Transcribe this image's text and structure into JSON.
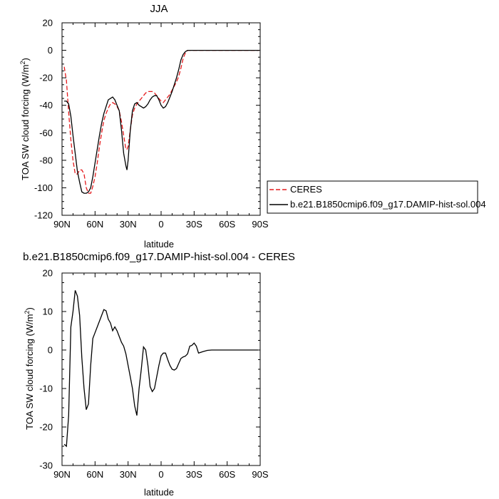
{
  "chart_data": [
    {
      "type": "line",
      "title": "JJA",
      "xlabel": "latitude",
      "ylabel_main": "TOA SW cloud forcing (W/m",
      "ylabel_sup": "2",
      "ylabel_close": ")",
      "xlim": [
        90,
        -90
      ],
      "ylim": [
        -120,
        20
      ],
      "xticks": [
        90,
        60,
        30,
        0,
        -30,
        -60,
        -90
      ],
      "xtick_labels": [
        "90N",
        "60N",
        "30N",
        "0",
        "30S",
        "60S",
        "90S"
      ],
      "yticks": [
        -120,
        -100,
        -80,
        -60,
        -40,
        -20,
        0,
        20
      ],
      "ytick_labels": [
        "-120",
        "-100",
        "-80",
        "-60",
        "-40",
        "-20",
        "0",
        "20"
      ],
      "legend_position": "outside-right",
      "series": [
        {
          "name": "CERES",
          "color": "#e41a1c",
          "dash": "dashed",
          "points": [
            [
              88,
              -12
            ],
            [
              86,
              -22
            ],
            [
              84,
              -45
            ],
            [
              82,
              -65
            ],
            [
              80,
              -80
            ],
            [
              78,
              -90
            ],
            [
              76,
              -90
            ],
            [
              74,
              -87
            ],
            [
              72,
              -87
            ],
            [
              70,
              -90
            ],
            [
              68,
              -100
            ],
            [
              66,
              -104
            ],
            [
              64,
              -104
            ],
            [
              62,
              -99
            ],
            [
              60,
              -92
            ],
            [
              58,
              -82
            ],
            [
              56,
              -70
            ],
            [
              54,
              -60
            ],
            [
              52,
              -51
            ],
            [
              50,
              -46
            ],
            [
              48,
              -42
            ],
            [
              46,
              -39
            ],
            [
              44,
              -38
            ],
            [
              42,
              -39
            ],
            [
              40,
              -41
            ],
            [
              38,
              -44
            ],
            [
              36,
              -52
            ],
            [
              34,
              -62
            ],
            [
              32,
              -72
            ],
            [
              31,
              -72
            ],
            [
              30,
              -70
            ],
            [
              28,
              -58
            ],
            [
              26,
              -47
            ],
            [
              24,
              -42
            ],
            [
              22,
              -39
            ],
            [
              20,
              -37
            ],
            [
              18,
              -35
            ],
            [
              16,
              -33
            ],
            [
              14,
              -31
            ],
            [
              12,
              -30
            ],
            [
              10,
              -30
            ],
            [
              8,
              -30
            ],
            [
              6,
              -31
            ],
            [
              4,
              -33
            ],
            [
              2,
              -35
            ],
            [
              0,
              -37
            ],
            [
              -2,
              -38
            ],
            [
              -4,
              -36
            ],
            [
              -6,
              -34
            ],
            [
              -8,
              -32
            ],
            [
              -10,
              -29
            ],
            [
              -12,
              -26
            ],
            [
              -14,
              -23
            ],
            [
              -16,
              -19
            ],
            [
              -18,
              -13
            ],
            [
              -20,
              -6
            ],
            [
              -22,
              -2
            ],
            [
              -24,
              0
            ],
            [
              -28,
              0
            ],
            [
              -35,
              0
            ],
            [
              -89,
              0
            ]
          ]
        },
        {
          "name": "b.e21.B1850cmip6.f09_g17.DAMIP-hist-sol.004",
          "color": "#000000",
          "dash": "solid",
          "points": [
            [
              88,
              -37
            ],
            [
              86,
              -37
            ],
            [
              84,
              -39
            ],
            [
              82,
              -48
            ],
            [
              80,
              -62
            ],
            [
              78,
              -75
            ],
            [
              76,
              -88
            ],
            [
              74,
              -96
            ],
            [
              72,
              -103
            ],
            [
              70,
              -104
            ],
            [
              68,
              -104
            ],
            [
              66,
              -103
            ],
            [
              64,
              -100
            ],
            [
              62,
              -92
            ],
            [
              60,
              -82
            ],
            [
              58,
              -72
            ],
            [
              56,
              -62
            ],
            [
              54,
              -53
            ],
            [
              52,
              -46
            ],
            [
              50,
              -41
            ],
            [
              48,
              -36
            ],
            [
              46,
              -35
            ],
            [
              44,
              -34
            ],
            [
              42,
              -36
            ],
            [
              40,
              -40
            ],
            [
              38,
              -44
            ],
            [
              36,
              -58
            ],
            [
              34,
              -75
            ],
            [
              32,
              -84
            ],
            [
              31,
              -87
            ],
            [
              30,
              -80
            ],
            [
              28,
              -58
            ],
            [
              26,
              -44
            ],
            [
              24,
              -39
            ],
            [
              22,
              -38
            ],
            [
              20,
              -40
            ],
            [
              18,
              -41
            ],
            [
              16,
              -42
            ],
            [
              14,
              -41
            ],
            [
              12,
              -39
            ],
            [
              10,
              -36
            ],
            [
              8,
              -34
            ],
            [
              6,
              -33
            ],
            [
              4,
              -33
            ],
            [
              2,
              -36
            ],
            [
              0,
              -40
            ],
            [
              -2,
              -42
            ],
            [
              -4,
              -41
            ],
            [
              -6,
              -38
            ],
            [
              -8,
              -34
            ],
            [
              -10,
              -30
            ],
            [
              -12,
              -25
            ],
            [
              -14,
              -20
            ],
            [
              -16,
              -14
            ],
            [
              -18,
              -7
            ],
            [
              -20,
              -3
            ],
            [
              -22,
              -1
            ],
            [
              -24,
              0
            ],
            [
              -28,
              0
            ],
            [
              -35,
              0
            ],
            [
              -89,
              0
            ]
          ]
        }
      ]
    },
    {
      "type": "line",
      "title": "b.e21.B1850cmip6.f09_g17.DAMIP-hist-sol.004 - CERES",
      "xlabel": "latitude",
      "ylabel_main": "TOA SW cloud forcing (W/m",
      "ylabel_sup": "2",
      "ylabel_close": ")",
      "xlim": [
        90,
        -90
      ],
      "ylim": [
        -30,
        20
      ],
      "xticks": [
        90,
        60,
        30,
        0,
        -30,
        -60,
        -90
      ],
      "xtick_labels": [
        "90N",
        "60N",
        "30N",
        "0",
        "30S",
        "60S",
        "90S"
      ],
      "yticks": [
        -30,
        -20,
        -10,
        0,
        10,
        20
      ],
      "ytick_labels": [
        "-30",
        "-20",
        "-10",
        "0",
        "10",
        "20"
      ],
      "series": [
        {
          "color": "#000000",
          "dash": "solid",
          "points": [
            [
              88,
              -24.5
            ],
            [
              86,
              -25
            ],
            [
              84,
              -17
            ],
            [
              82,
              6
            ],
            [
              80,
              10
            ],
            [
              78,
              15.5
            ],
            [
              76,
              14
            ],
            [
              74,
              9
            ],
            [
              72,
              -2
            ],
            [
              70,
              -10
            ],
            [
              68,
              -15.5
            ],
            [
              66,
              -14
            ],
            [
              64,
              -4
            ],
            [
              62,
              3
            ],
            [
              60,
              4.5
            ],
            [
              58,
              6
            ],
            [
              56,
              7.5
            ],
            [
              54,
              9
            ],
            [
              52,
              10.5
            ],
            [
              50,
              10.2
            ],
            [
              48,
              8
            ],
            [
              46,
              7
            ],
            [
              44,
              5
            ],
            [
              42,
              6
            ],
            [
              40,
              5
            ],
            [
              38,
              3.5
            ],
            [
              36,
              2
            ],
            [
              34,
              1
            ],
            [
              32,
              -1
            ],
            [
              30,
              -4
            ],
            [
              28,
              -7
            ],
            [
              26,
              -10
            ],
            [
              24,
              -14.5
            ],
            [
              22,
              -17
            ],
            [
              20,
              -10
            ],
            [
              18,
              -5
            ],
            [
              16,
              0.8
            ],
            [
              14,
              0
            ],
            [
              12,
              -4
            ],
            [
              10,
              -9.5
            ],
            [
              8,
              -10.8
            ],
            [
              6,
              -10
            ],
            [
              4,
              -7
            ],
            [
              2,
              -4
            ],
            [
              0,
              -1.5
            ],
            [
              -2,
              -0.8
            ],
            [
              -4,
              -0.8
            ],
            [
              -6,
              -2.5
            ],
            [
              -8,
              -4
            ],
            [
              -10,
              -5
            ],
            [
              -12,
              -5.2
            ],
            [
              -14,
              -4.8
            ],
            [
              -16,
              -3.5
            ],
            [
              -18,
              -2.2
            ],
            [
              -20,
              -1.8
            ],
            [
              -22,
              -1.6
            ],
            [
              -24,
              -1
            ],
            [
              -26,
              1
            ],
            [
              -28,
              1.2
            ],
            [
              -30,
              1.8
            ],
            [
              -32,
              1
            ],
            [
              -34,
              -0.8
            ],
            [
              -38,
              -0.4
            ],
            [
              -42,
              -0.1
            ],
            [
              -46,
              0
            ],
            [
              -88,
              0
            ]
          ]
        }
      ]
    }
  ]
}
